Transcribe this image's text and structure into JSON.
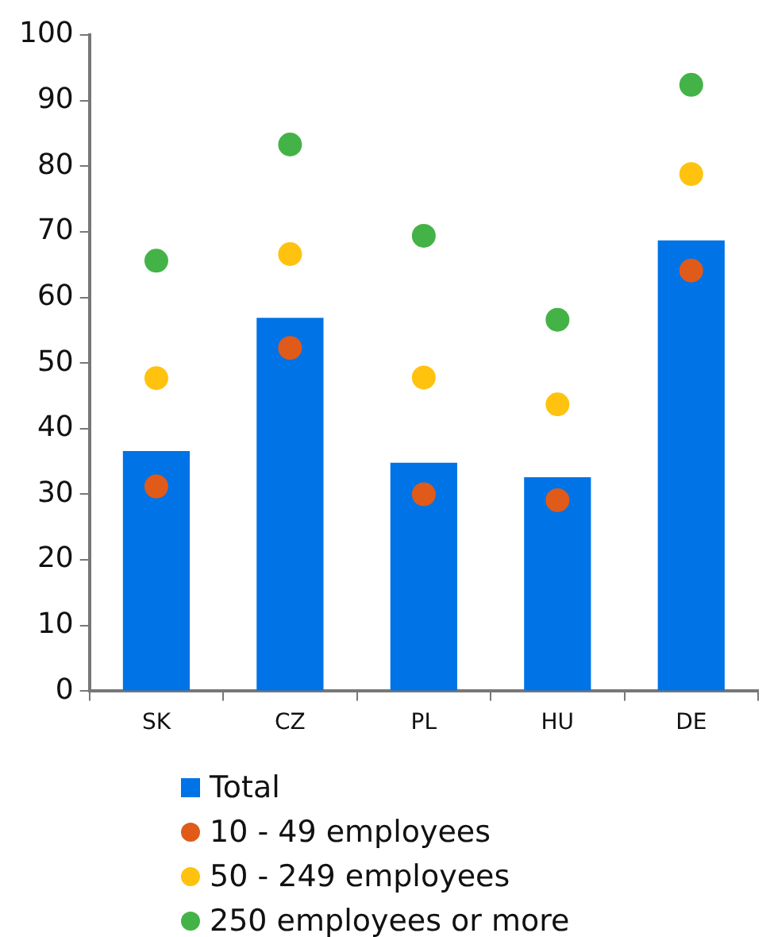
{
  "chart_data": {
    "type": "bar",
    "categories": [
      "SK",
      "CZ",
      "PL",
      "HU",
      "DE"
    ],
    "series": [
      {
        "name": "Total",
        "color": "#0073e6",
        "values": [
          36.6,
          56.9,
          34.8,
          32.6,
          68.7
        ]
      },
      {
        "name": "10 - 49 employees",
        "type": "scatter",
        "x": [
          "SK",
          "CZ",
          "PL",
          "HU",
          "DE"
        ],
        "color": "#e05a1a",
        "values": [
          31.2,
          52.3,
          30.0,
          29.1,
          64.1
        ]
      },
      {
        "name": "50 - 249 employees",
        "type": "scatter",
        "x": [
          "SK",
          "CZ",
          "PL",
          "HU",
          "DE"
        ],
        "color": "#ffc20e",
        "values": [
          47.7,
          66.6,
          47.8,
          43.7,
          78.8
        ]
      },
      {
        "name": "250 employees or more",
        "type": "scatter",
        "x": [
          "SK",
          "CZ",
          "PL",
          "HU",
          "DE"
        ],
        "color": "#44b347",
        "values": [
          65.6,
          83.3,
          69.4,
          56.6,
          92.4
        ]
      }
    ],
    "ylim": [
      0,
      100
    ],
    "yticks": [
      0,
      10,
      20,
      30,
      40,
      50,
      60,
      70,
      80,
      90,
      100
    ],
    "grid": false,
    "legend": "bottom",
    "marker": "circle"
  }
}
